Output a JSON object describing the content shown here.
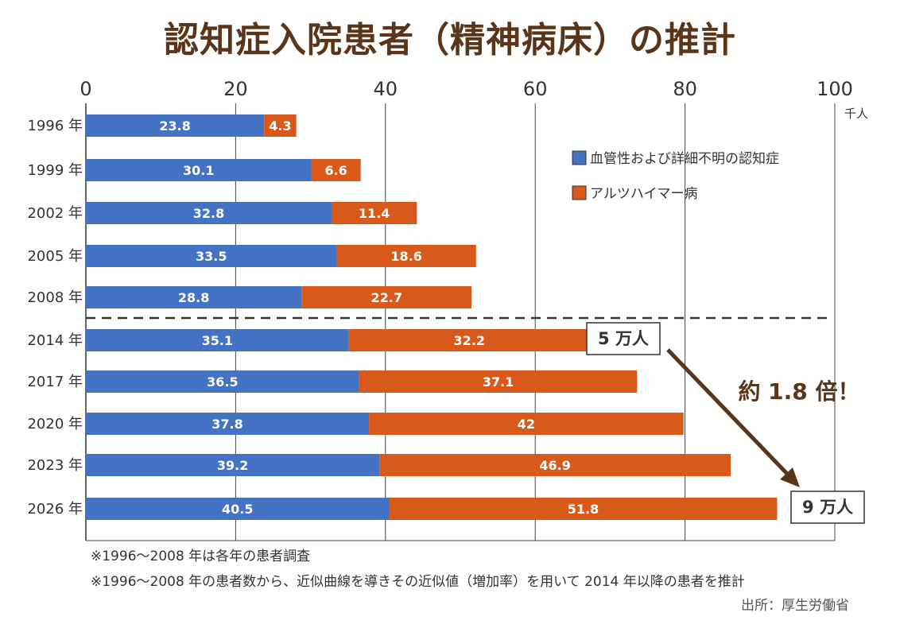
{
  "title": "認知症入院患者（精神病床）の推計",
  "chart_data": {
    "type": "bar",
    "orientation": "horizontal",
    "stacked": true,
    "title": "認知症入院患者（精神病床）の推計",
    "xlabel": "千人",
    "xlim": [
      0,
      100
    ],
    "xticks": [
      0,
      20,
      40,
      60,
      80,
      100
    ],
    "categories": [
      "1996 年",
      "1999 年",
      "2002 年",
      "2005 年",
      "2008 年",
      "2014 年",
      "2017 年",
      "2020 年",
      "2023 年",
      "2026 年"
    ],
    "series": [
      {
        "name": "血管性および詳細不明の認知症",
        "color": "#4472c4",
        "values": [
          23.8,
          30.1,
          32.8,
          33.5,
          28.8,
          35.1,
          36.5,
          37.8,
          39.2,
          40.5
        ]
      },
      {
        "name": "アルツハイマー病",
        "color": "#d9591a",
        "values": [
          4.3,
          6.6,
          11.4,
          18.6,
          22.7,
          32.2,
          37.1,
          42,
          46.9,
          51.8
        ]
      }
    ],
    "legend_position": "top-right",
    "grid": true,
    "divider_after": "2008 年",
    "annotations": {
      "box_start": "5 万人",
      "box_end": "9 万人",
      "growth": "約 1.8 倍！"
    }
  },
  "notes": [
    "※1996～2008 年は各年の患者調査",
    "※1996～2008 年の患者数から、近似曲線を導きその近似値（増加率）を用いて 2014 年以降の患者を推計"
  ],
  "source": "出所：厚生労働省",
  "colors": {
    "title": "#5a3519",
    "blue": "#4472c4",
    "orange": "#d9591a",
    "arrow": "#5a3519"
  }
}
